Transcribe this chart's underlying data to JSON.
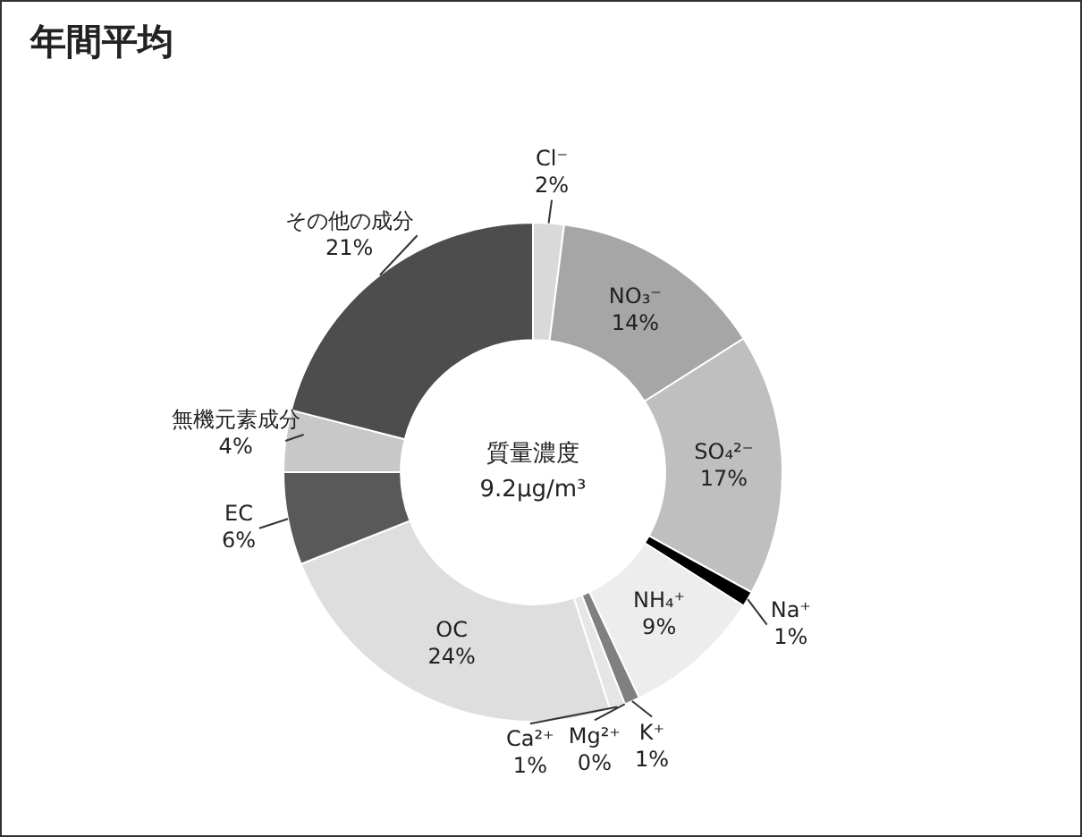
{
  "chart_data": {
    "type": "donut",
    "title": "年間平均",
    "categories": [
      "Cl⁻",
      "NO₃⁻",
      "SO₄²⁻",
      "Na⁺",
      "NH₄⁺",
      "K⁺",
      "Mg²⁺",
      "Ca²⁺",
      "OC",
      "EC",
      "無機元素成分",
      "その他の成分"
    ],
    "values": [
      2,
      14,
      17,
      1,
      9,
      1,
      0,
      1,
      24,
      6,
      4,
      21
    ],
    "value_labels": [
      "2%",
      "14%",
      "17%",
      "1%",
      "9%",
      "1%",
      "0%",
      "1%",
      "24%",
      "6%",
      "4%",
      "21%"
    ],
    "colors": [
      "#d9d9d9",
      "#a6a6a6",
      "#bfbfbf",
      "#000000",
      "#ededed",
      "#808080",
      "#a0a0a0",
      "#e6e6e6",
      "#dedede",
      "#595959",
      "#c8c8c8",
      "#4d4d4d"
    ],
    "annotations": [
      "質量濃度",
      "9.2μg/m³"
    ]
  }
}
